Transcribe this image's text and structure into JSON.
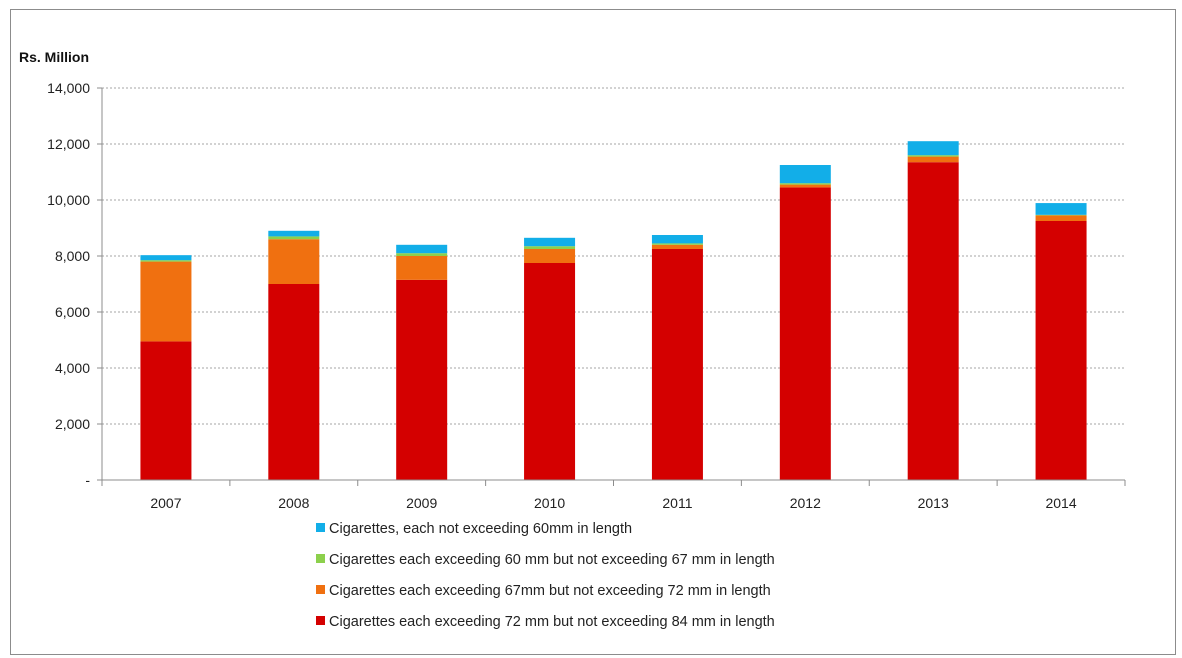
{
  "chart_data": {
    "type": "bar",
    "stacked": true,
    "ylabel": "Rs. Million",
    "ylim": [
      0,
      14000
    ],
    "yticks": [
      0,
      2000,
      4000,
      6000,
      8000,
      10000,
      12000,
      14000
    ],
    "ytick_labels": [
      "-",
      "2,000",
      "4,000",
      "6,000",
      "8,000",
      "10,000",
      "12,000",
      "14,000"
    ],
    "grid": true,
    "legend_position": "bottom",
    "categories": [
      "2007",
      "2008",
      "2009",
      "2010",
      "2011",
      "2012",
      "2013",
      "2014"
    ],
    "series": [
      {
        "name": "Cigarettes each exceeding 72 mm but not exceeding 84 mm in length",
        "color": "#d40000",
        "values": [
          4950,
          7000,
          7150,
          7750,
          8250,
          10450,
          11350,
          9250
        ]
      },
      {
        "name": "Cigarettes each exceeding 67mm but not exceeding 72 mm in length",
        "color": "#f07010",
        "values": [
          2850,
          1600,
          850,
          500,
          150,
          100,
          200,
          200
        ]
      },
      {
        "name": "Cigarettes each exceeding 60 mm but not exceeding 67 mm in length",
        "color": "#8cd04c",
        "values": [
          50,
          100,
          100,
          100,
          50,
          50,
          50,
          20
        ]
      },
      {
        "name": "Cigarettes, each not exceeding 60mm in length",
        "color": "#12aee8",
        "values": [
          180,
          200,
          300,
          300,
          300,
          650,
          500,
          420
        ]
      }
    ],
    "legend_order": [
      3,
      2,
      1,
      0
    ]
  }
}
